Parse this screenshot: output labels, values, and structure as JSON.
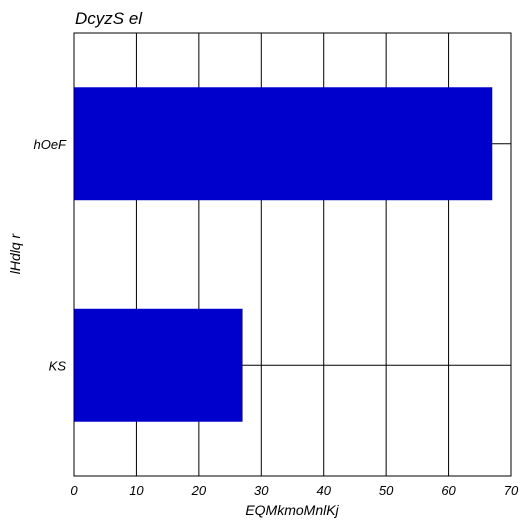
{
  "chart_data": {
    "type": "bar",
    "orientation": "horizontal",
    "title": "DcyzS el",
    "xlabel": "EQMkmoMnlKj",
    "ylabel": "lHdlq r",
    "categories": [
      "hOeF",
      "KS"
    ],
    "values": [
      67,
      27
    ],
    "xlim": [
      0,
      70
    ],
    "xticks": [
      0,
      10,
      20,
      30,
      40,
      50,
      60,
      70
    ],
    "grid": true,
    "bar_color": "#0000cc"
  }
}
